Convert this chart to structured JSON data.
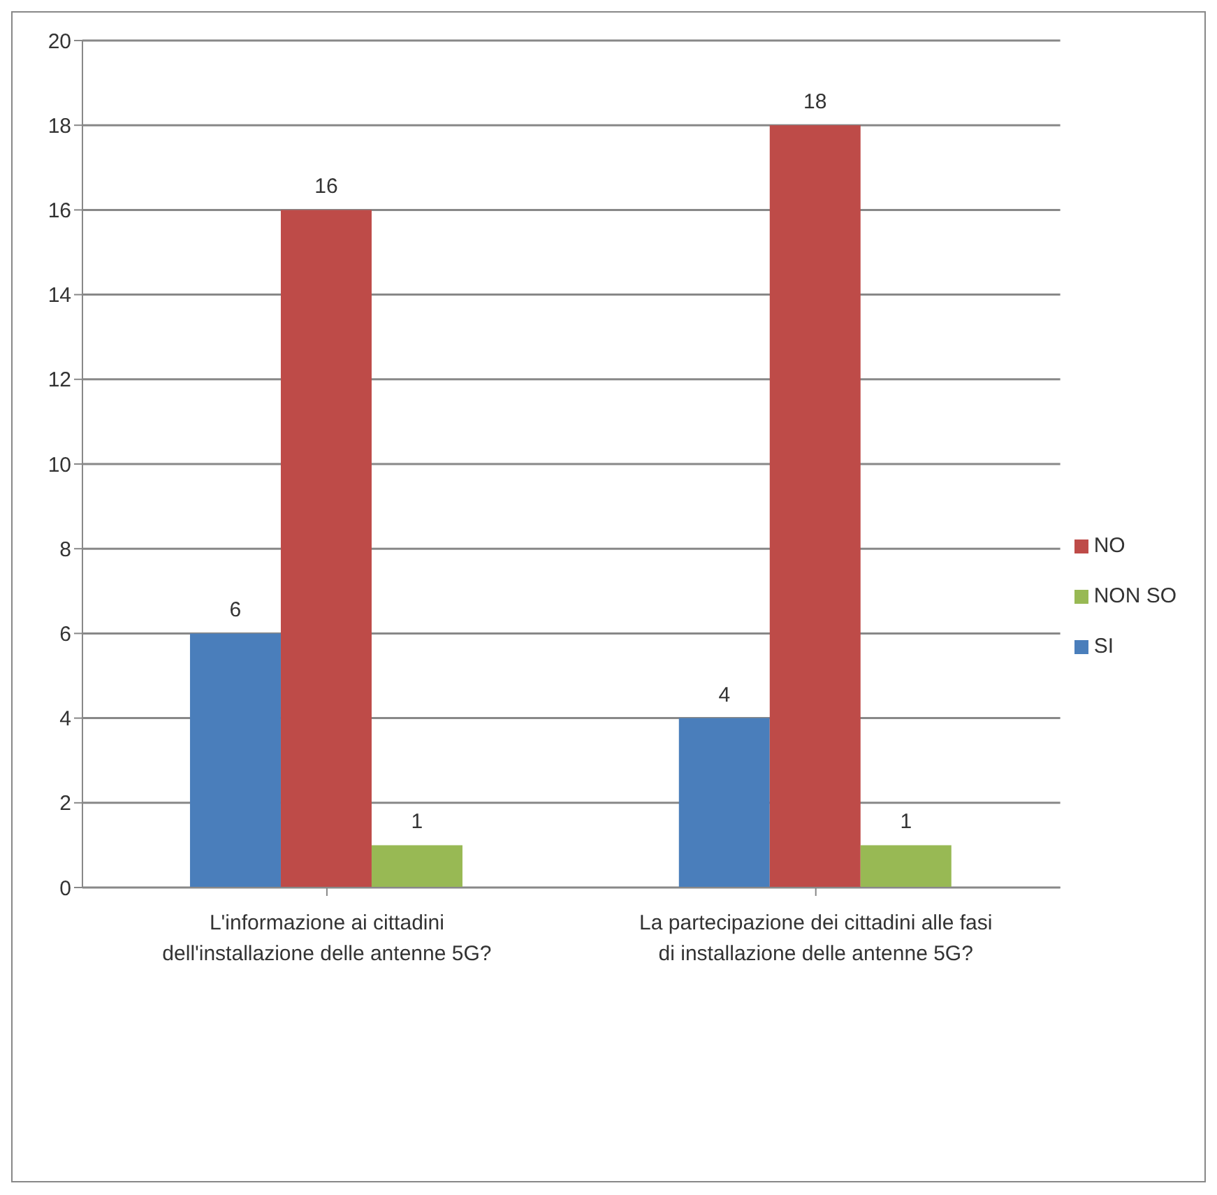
{
  "chart_data": {
    "type": "bar",
    "categories": [
      "L'informazione ai cittadini dell'installazione delle antenne 5G?",
      "La partecipazione dei cittadini alle fasi di installazione delle antenne 5G?"
    ],
    "series": [
      {
        "name": "SI",
        "color": "#4a7ebb",
        "values": [
          6,
          4
        ]
      },
      {
        "name": "NO",
        "color": "#be4b48",
        "values": [
          16,
          18
        ]
      },
      {
        "name": "NON SO",
        "color": "#98b954",
        "values": [
          1,
          1
        ]
      }
    ],
    "ylim": [
      0,
      20
    ],
    "yticks": [
      0,
      2,
      4,
      6,
      8,
      10,
      12,
      14,
      16,
      18,
      20
    ],
    "grid": "y",
    "legend": "right",
    "data_labels": true
  }
}
